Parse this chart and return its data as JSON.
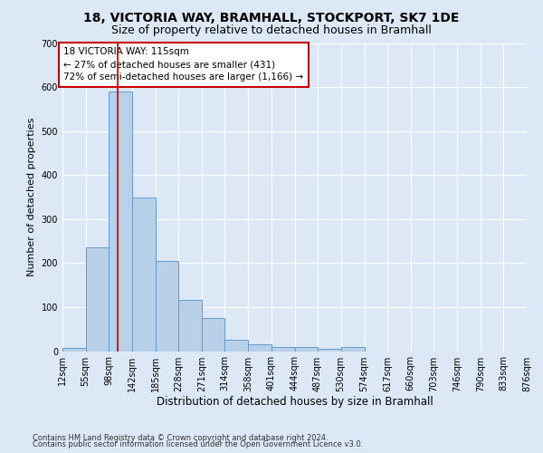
{
  "title1": "18, VICTORIA WAY, BRAMHALL, STOCKPORT, SK7 1DE",
  "title2": "Size of property relative to detached houses in Bramhall",
  "xlabel": "Distribution of detached houses by size in Bramhall",
  "ylabel": "Number of detached properties",
  "footer1": "Contains HM Land Registry data © Crown copyright and database right 2024.",
  "footer2": "Contains public sector information licensed under the Open Government Licence v3.0.",
  "bin_edges": [
    12,
    55,
    98,
    142,
    185,
    228,
    271,
    314,
    358,
    401,
    444,
    487,
    530,
    574,
    617,
    660,
    703,
    746,
    790,
    833,
    876
  ],
  "bin_labels": [
    "12sqm",
    "55sqm",
    "98sqm",
    "142sqm",
    "185sqm",
    "228sqm",
    "271sqm",
    "314sqm",
    "358sqm",
    "401sqm",
    "444sqm",
    "487sqm",
    "530sqm",
    "574sqm",
    "617sqm",
    "660sqm",
    "703sqm",
    "746sqm",
    "790sqm",
    "833sqm",
    "876sqm"
  ],
  "counts": [
    8,
    235,
    590,
    350,
    205,
    117,
    75,
    25,
    15,
    10,
    10,
    5,
    10,
    0,
    0,
    0,
    0,
    0,
    0,
    0
  ],
  "bar_color": "#b8d0e8",
  "bar_edge_color": "#6699cc",
  "property_sqm": 115,
  "vline_color": "#cc0000",
  "annotation_text": "18 VICTORIA WAY: 115sqm\n← 27% of detached houses are smaller (431)\n72% of semi-detached houses are larger (1,166) →",
  "annotation_box_color": "#ffffff",
  "annotation_box_edge": "#cc0000",
  "ylim": [
    0,
    700
  ],
  "yticks": [
    0,
    100,
    200,
    300,
    400,
    500,
    600,
    700
  ],
  "bg_color": "#dce8f5",
  "plot_bg_color": "#dce8f5",
  "grid_color": "#ffffff",
  "title1_fontsize": 10,
  "title2_fontsize": 9,
  "xlabel_fontsize": 8.5,
  "ylabel_fontsize": 8,
  "tick_fontsize": 7,
  "annotation_fontsize": 7.5,
  "footer_fontsize": 6
}
